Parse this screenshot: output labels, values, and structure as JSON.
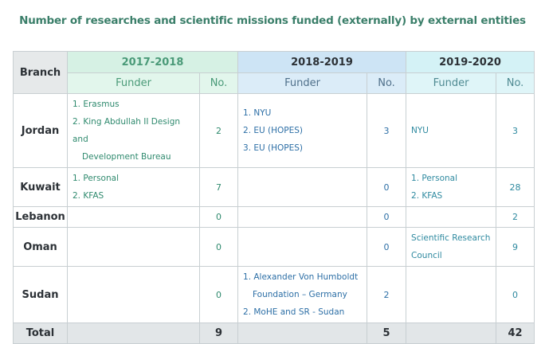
{
  "title": "Number of researches and scientific missions funded (externally) by external entities",
  "header": {
    "branch": "Branch",
    "years": [
      "2017-2018",
      "2018-2019",
      "2019-2020"
    ],
    "funder": "Funder",
    "no": "No."
  },
  "rows": [
    {
      "branch": "Jordan",
      "y1": {
        "lines": [
          "1. Erasmus",
          "2. King Abdullah II Design and",
          "Development Bureau"
        ],
        "no": "2"
      },
      "y2": {
        "lines": [
          "1. NYU",
          "2. EU (HOPES)",
          "3. EU (HOPES)"
        ],
        "no": "3"
      },
      "y3": {
        "lines": [
          "NYU"
        ],
        "no": "3"
      }
    },
    {
      "branch": "Kuwait",
      "y1": {
        "lines": [
          "1. Personal",
          "2. KFAS"
        ],
        "no": "7"
      },
      "y2": {
        "lines": [],
        "no": "0"
      },
      "y3": {
        "lines": [
          "1. Personal",
          "2. KFAS"
        ],
        "no": "28"
      }
    },
    {
      "branch": "Lebanon",
      "y1": {
        "lines": [],
        "no": "0"
      },
      "y2": {
        "lines": [],
        "no": "0"
      },
      "y3": {
        "lines": [],
        "no": "2"
      }
    },
    {
      "branch": "Oman",
      "y1": {
        "lines": [],
        "no": "0"
      },
      "y2": {
        "lines": [],
        "no": "0"
      },
      "y3": {
        "lines": [
          "Scientific Research",
          "Council"
        ],
        "no": "9"
      }
    },
    {
      "branch": "Sudan",
      "y1": {
        "lines": [],
        "no": "0"
      },
      "y2": {
        "lines": [
          "1. Alexander Von Humboldt",
          "Foundation – Germany",
          "2. MoHE and SR - Sudan"
        ],
        "no": "2"
      },
      "y3": {
        "lines": [],
        "no": "0"
      }
    }
  ],
  "total": {
    "label": "Total",
    "values": [
      "9",
      "5",
      "42"
    ]
  }
}
